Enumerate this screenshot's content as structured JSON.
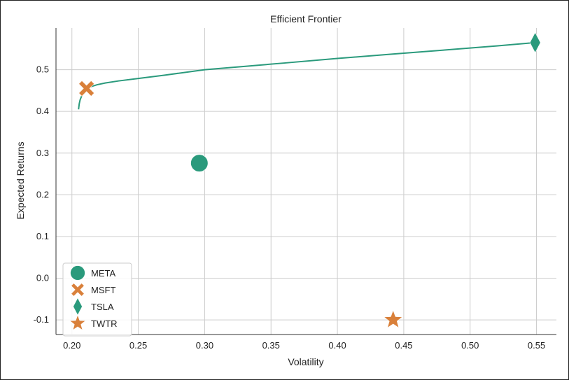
{
  "chart_data": {
    "type": "scatter",
    "title": "Efficient Frontier",
    "xlabel": "Volatility",
    "ylabel": "Expected Returns",
    "xlim": [
      0.188,
      0.565
    ],
    "ylim": [
      -0.135,
      0.6
    ],
    "x_ticks": [
      0.2,
      0.25,
      0.3,
      0.35,
      0.4,
      0.45,
      0.5,
      0.55
    ],
    "x_tick_labels": [
      "0.20",
      "0.25",
      "0.30",
      "0.35",
      "0.40",
      "0.45",
      "0.50",
      "0.55"
    ],
    "y_ticks": [
      -0.1,
      0.0,
      0.1,
      0.2,
      0.3,
      0.4,
      0.5
    ],
    "y_tick_labels": [
      "-0.1",
      "0.0",
      "0.1",
      "0.2",
      "0.3",
      "0.4",
      "0.5"
    ],
    "grid": true,
    "legend_position": "lower-left",
    "frontier": {
      "color": "#2a9a7c",
      "x": [
        0.205,
        0.2055,
        0.2062,
        0.2075,
        0.209,
        0.211,
        0.214,
        0.219,
        0.225,
        0.235,
        0.25,
        0.27,
        0.3,
        0.33,
        0.36,
        0.4,
        0.44,
        0.48,
        0.52,
        0.549
      ],
      "y": [
        0.405,
        0.418,
        0.428,
        0.438,
        0.446,
        0.453,
        0.459,
        0.464,
        0.468,
        0.473,
        0.479,
        0.487,
        0.5,
        0.508,
        0.516,
        0.527,
        0.537,
        0.547,
        0.557,
        0.565
      ]
    },
    "series": [
      {
        "name": "META",
        "marker": "circle",
        "color": "#2a9a7c",
        "x": 0.296,
        "y": 0.276
      },
      {
        "name": "MSFT",
        "marker": "x",
        "color": "#d9803a",
        "x": 0.211,
        "y": 0.455
      },
      {
        "name": "TSLA",
        "marker": "diamond",
        "color": "#2a9a7c",
        "x": 0.549,
        "y": 0.565
      },
      {
        "name": "TWTR",
        "marker": "star",
        "color": "#d9803a",
        "x": 0.442,
        "y": -0.1
      }
    ]
  }
}
